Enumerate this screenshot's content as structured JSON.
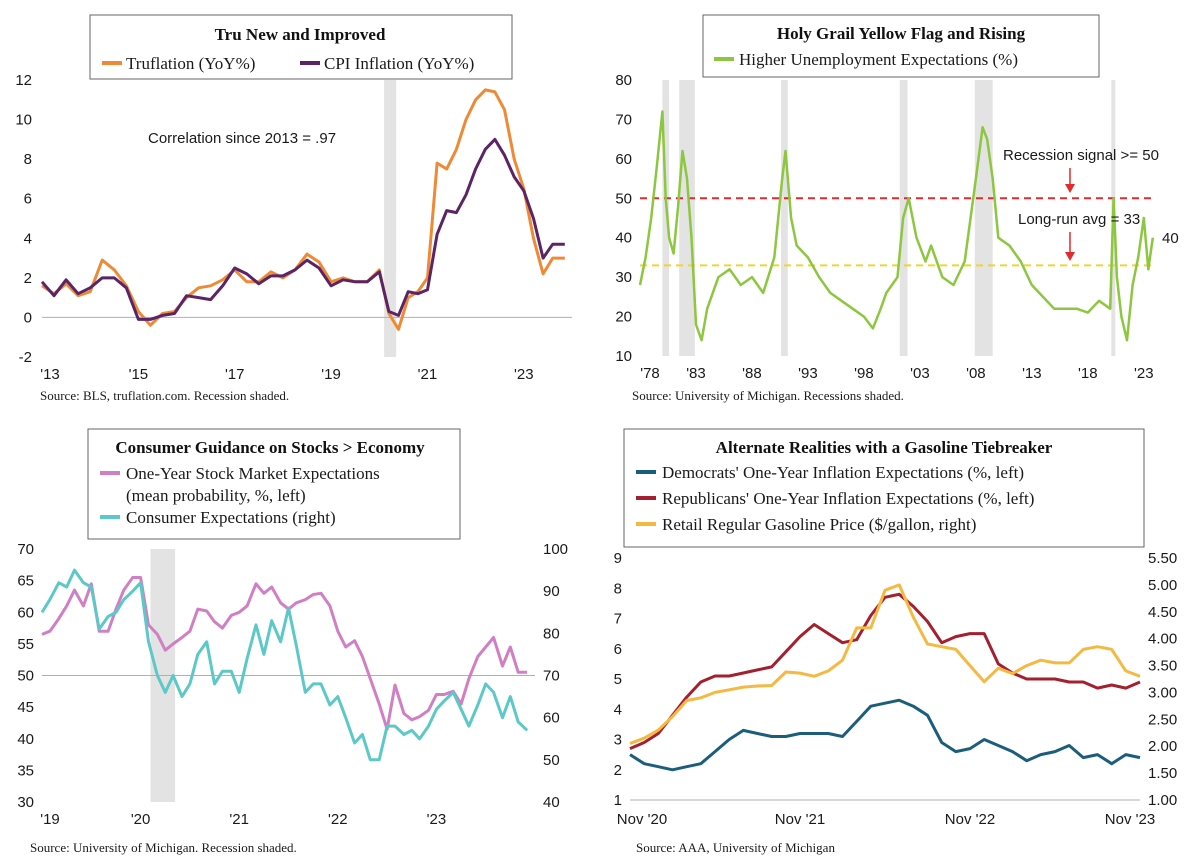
{
  "chart_data": [
    {
      "type": "line",
      "title": "Tru New and Improved",
      "source": "Source: BLS, truflation.com. Recession shaded.",
      "annotation": "Correlation since 2013 = .97",
      "x_ticks": [
        "'13",
        "'15",
        "'17",
        "'19",
        "'21",
        "'23"
      ],
      "xlim": [
        2013,
        2024
      ],
      "ylim": [
        -2,
        12
      ],
      "y_ticks": [
        "-2",
        "0",
        "2",
        "4",
        "6",
        "8",
        "10",
        "12"
      ],
      "recessions": [
        [
          2020.1,
          2020.35
        ]
      ],
      "series": [
        {
          "name": "Truflation (YoY%)",
          "color": "#ee8a35",
          "x": [
            2013.0,
            2013.25,
            2013.5,
            2013.75,
            2014.0,
            2014.25,
            2014.5,
            2014.75,
            2015.0,
            2015.25,
            2015.5,
            2015.75,
            2016.0,
            2016.25,
            2016.5,
            2016.75,
            2017.0,
            2017.25,
            2017.5,
            2017.75,
            2018.0,
            2018.25,
            2018.5,
            2018.75,
            2019.0,
            2019.25,
            2019.5,
            2019.75,
            2020.0,
            2020.2,
            2020.4,
            2020.6,
            2020.8,
            2021.0,
            2021.2,
            2021.4,
            2021.6,
            2021.8,
            2022.0,
            2022.2,
            2022.4,
            2022.6,
            2022.8,
            2023.0,
            2023.2,
            2023.4,
            2023.6,
            2023.85
          ],
          "y": [
            1.6,
            1.2,
            1.7,
            1.1,
            1.3,
            2.9,
            2.4,
            1.6,
            0.3,
            -0.4,
            0.2,
            0.3,
            1.0,
            1.5,
            1.6,
            1.9,
            2.4,
            1.8,
            1.8,
            2.3,
            2.0,
            2.4,
            3.2,
            2.8,
            1.8,
            2.0,
            1.8,
            1.8,
            2.4,
            0.2,
            -0.6,
            1.0,
            1.3,
            2.0,
            7.8,
            7.5,
            8.5,
            10.0,
            11.0,
            11.5,
            11.4,
            10.5,
            8.0,
            6.5,
            4.0,
            2.2,
            3.0,
            3.0
          ]
        },
        {
          "name": "CPI Inflation (YoY%)",
          "color": "#5b2466",
          "x": [
            2013.0,
            2013.25,
            2013.5,
            2013.75,
            2014.0,
            2014.25,
            2014.5,
            2014.75,
            2015.0,
            2015.25,
            2015.5,
            2015.75,
            2016.0,
            2016.25,
            2016.5,
            2016.75,
            2017.0,
            2017.25,
            2017.5,
            2017.75,
            2018.0,
            2018.25,
            2018.5,
            2018.75,
            2019.0,
            2019.25,
            2019.5,
            2019.75,
            2020.0,
            2020.2,
            2020.4,
            2020.6,
            2020.8,
            2021.0,
            2021.2,
            2021.4,
            2021.6,
            2021.8,
            2022.0,
            2022.2,
            2022.4,
            2022.6,
            2022.8,
            2023.0,
            2023.2,
            2023.4,
            2023.6,
            2023.85
          ],
          "y": [
            1.8,
            1.1,
            1.9,
            1.2,
            1.5,
            2.0,
            2.0,
            1.5,
            -0.1,
            -0.1,
            0.1,
            0.2,
            1.1,
            1.0,
            0.9,
            1.6,
            2.5,
            2.2,
            1.7,
            2.1,
            2.1,
            2.4,
            2.9,
            2.5,
            1.6,
            1.9,
            1.8,
            1.8,
            2.3,
            0.3,
            0.1,
            1.3,
            1.2,
            1.4,
            4.2,
            5.4,
            5.3,
            6.2,
            7.5,
            8.5,
            9.0,
            8.2,
            7.1,
            6.4,
            5.0,
            3.0,
            3.7,
            3.7
          ]
        }
      ]
    },
    {
      "type": "line",
      "title": "Holy Grail Yellow Flag and Rising",
      "source": "Source: University of Michigan. Recessions shaded.",
      "x_ticks": [
        "'78",
        "'83",
        "'88",
        "'93",
        "'98",
        "'03",
        "'08",
        "'13",
        "'18",
        "'23"
      ],
      "xlim": [
        1978,
        2024
      ],
      "ylim": [
        10,
        80
      ],
      "y_ticks": [
        "10",
        "20",
        "30",
        "40",
        "50",
        "60",
        "70",
        "80"
      ],
      "recessions": [
        [
          1980.0,
          1980.6
        ],
        [
          1981.5,
          1982.9
        ],
        [
          1990.6,
          1991.2
        ],
        [
          2001.2,
          2001.9
        ],
        [
          2007.9,
          2009.5
        ],
        [
          2020.1,
          2020.4
        ]
      ],
      "reference_lines": [
        {
          "label": "Recession signal >= 50",
          "value": 50,
          "color": "#e32b2b"
        },
        {
          "label": "Long-run avg = 33",
          "value": 33,
          "color": "#f0d23a"
        }
      ],
      "end_label": "40",
      "series": [
        {
          "name": "Higher Unemployment Expectations (%)",
          "color": "#8dc63f",
          "x": [
            1978.0,
            1978.5,
            1979.0,
            1979.5,
            1980.0,
            1980.3,
            1980.6,
            1981.0,
            1981.4,
            1981.8,
            1982.2,
            1982.6,
            1983.0,
            1983.5,
            1984.0,
            1985.0,
            1986.0,
            1987.0,
            1988.0,
            1989.0,
            1990.0,
            1990.7,
            1991.0,
            1991.5,
            1992.0,
            1993.0,
            1994.0,
            1995.0,
            1996.0,
            1997.0,
            1998.0,
            1998.8,
            1999.5,
            2000.0,
            2001.0,
            2001.5,
            2002.0,
            2002.7,
            2003.5,
            2004.0,
            2005.0,
            2006.0,
            2007.0,
            2008.0,
            2008.6,
            2009.0,
            2009.5,
            2010.0,
            2011.0,
            2012.0,
            2013.0,
            2014.0,
            2015.0,
            2016.0,
            2017.0,
            2018.0,
            2019.0,
            2020.0,
            2020.3,
            2020.6,
            2021.0,
            2021.5,
            2022.0,
            2022.5,
            2023.0,
            2023.4,
            2023.8
          ],
          "y": [
            28,
            35,
            45,
            58,
            72,
            50,
            40,
            36,
            48,
            62,
            55,
            40,
            18,
            14,
            22,
            30,
            32,
            28,
            30,
            26,
            35,
            55,
            62,
            45,
            38,
            35,
            30,
            26,
            24,
            22,
            20,
            17,
            22,
            26,
            30,
            45,
            50,
            40,
            34,
            38,
            30,
            28,
            34,
            55,
            68,
            65,
            55,
            40,
            38,
            34,
            28,
            25,
            22,
            22,
            22,
            21,
            24,
            22,
            50,
            30,
            20,
            14,
            28,
            35,
            45,
            32,
            40
          ]
        }
      ]
    },
    {
      "type": "line",
      "title": "Consumer Guidance on Stocks > Economy",
      "source": "Source: University of Michigan. Recession shaded.",
      "x_ticks": [
        "'19",
        "'20",
        "'21",
        "'22",
        "'23"
      ],
      "xlim": [
        2019,
        2024
      ],
      "ylim_left": [
        30,
        70
      ],
      "ylim_right": [
        40,
        100
      ],
      "y_ticks_left": [
        "30",
        "35",
        "40",
        "45",
        "50",
        "55",
        "60",
        "65",
        "70"
      ],
      "y_ticks_right": [
        "40",
        "50",
        "60",
        "70",
        "80",
        "90",
        "100"
      ],
      "recessions": [
        [
          2020.1,
          2020.35
        ]
      ],
      "series": [
        {
          "name": "One-Year Stock Market Expectations",
          "name_line2": "(mean probability, %, left)",
          "color": "#d17fc5",
          "axis": "left",
          "x": [
            2019.0,
            2019.08,
            2019.17,
            2019.25,
            2019.33,
            2019.42,
            2019.5,
            2019.58,
            2019.67,
            2019.75,
            2019.83,
            2019.92,
            2020.0,
            2020.08,
            2020.17,
            2020.25,
            2020.33,
            2020.42,
            2020.5,
            2020.58,
            2020.67,
            2020.75,
            2020.83,
            2020.92,
            2021.0,
            2021.08,
            2021.17,
            2021.25,
            2021.33,
            2021.42,
            2021.5,
            2021.58,
            2021.67,
            2021.75,
            2021.83,
            2021.92,
            2022.0,
            2022.08,
            2022.17,
            2022.25,
            2022.33,
            2022.42,
            2022.5,
            2022.58,
            2022.67,
            2022.75,
            2022.83,
            2022.92,
            2023.0,
            2023.08,
            2023.17,
            2023.25,
            2023.33,
            2023.42,
            2023.5,
            2023.58,
            2023.67,
            2023.75,
            2023.83,
            2023.92
          ],
          "y": [
            56.5,
            57.0,
            59.0,
            61.0,
            63.5,
            61.0,
            64.5,
            57.0,
            57.0,
            60.5,
            63.5,
            65.5,
            65.5,
            58.0,
            56.5,
            54.0,
            55.0,
            56.0,
            57.0,
            60.5,
            60.2,
            58.5,
            57.5,
            59.5,
            60.0,
            61.0,
            64.5,
            63.0,
            64.0,
            61.5,
            60.5,
            61.5,
            62.0,
            62.8,
            63.0,
            61.0,
            57.0,
            54.5,
            55.5,
            53.0,
            49.5,
            45.5,
            41.5,
            48.5,
            44.0,
            43.0,
            43.5,
            44.5,
            47.0,
            47.0,
            47.5,
            45.5,
            49.5,
            53.0,
            54.5,
            56.0,
            51.5,
            54.5,
            50.5,
            50.5
          ]
        },
        {
          "name": "Consumer Expectations (right)",
          "color": "#5cc8c8",
          "axis": "right",
          "x": [
            2019.0,
            2019.08,
            2019.17,
            2019.25,
            2019.33,
            2019.42,
            2019.5,
            2019.58,
            2019.67,
            2019.75,
            2019.83,
            2019.92,
            2020.0,
            2020.08,
            2020.17,
            2020.25,
            2020.33,
            2020.42,
            2020.5,
            2020.58,
            2020.67,
            2020.75,
            2020.83,
            2020.92,
            2021.0,
            2021.08,
            2021.17,
            2021.25,
            2021.33,
            2021.42,
            2021.5,
            2021.58,
            2021.67,
            2021.75,
            2021.83,
            2021.92,
            2022.0,
            2022.08,
            2022.17,
            2022.25,
            2022.33,
            2022.42,
            2022.5,
            2022.58,
            2022.67,
            2022.75,
            2022.83,
            2022.92,
            2023.0,
            2023.08,
            2023.17,
            2023.25,
            2023.33,
            2023.42,
            2023.5,
            2023.58,
            2023.67,
            2023.75,
            2023.83,
            2023.92
          ],
          "y": [
            85,
            88,
            92,
            91,
            95,
            92,
            91,
            81,
            84,
            85,
            88,
            90,
            92,
            78,
            70,
            66,
            70,
            65,
            68,
            75,
            78,
            68,
            71,
            71,
            66,
            74,
            82,
            75,
            83,
            78,
            86,
            77,
            66,
            68,
            68,
            63,
            65,
            60,
            54,
            56,
            50,
            50,
            58,
            58,
            56,
            57,
            55,
            58,
            62,
            64,
            66,
            62,
            58,
            63,
            68,
            66,
            60,
            65,
            59,
            57
          ]
        }
      ]
    },
    {
      "type": "line",
      "title": "Alternate Realities with a Gasoline Tiebreaker",
      "source": "Source: AAA, University of Michigan",
      "x_ticks": [
        "Nov '20",
        "Nov '21",
        "Nov '22",
        "Nov '23"
      ],
      "xlim": [
        0,
        36
      ],
      "ylim_left": [
        1,
        9
      ],
      "ylim_right": [
        1.0,
        5.5
      ],
      "y_ticks_left": [
        "1",
        "2",
        "3",
        "4",
        "5",
        "6",
        "7",
        "8",
        "9"
      ],
      "y_ticks_right": [
        "1.00",
        "1.50",
        "2.00",
        "2.50",
        "3.00",
        "3.50",
        "4.00",
        "4.50",
        "5.00",
        "5.50"
      ],
      "series": [
        {
          "name": "Democrats' One-Year Inflation Expectations (%, left)",
          "color": "#1b5e7b",
          "axis": "left",
          "x": [
            0,
            1,
            2,
            3,
            4,
            5,
            6,
            7,
            8,
            9,
            10,
            11,
            12,
            13,
            14,
            15,
            16,
            17,
            18,
            19,
            20,
            21,
            22,
            23,
            24,
            25,
            26,
            27,
            28,
            29,
            30,
            31,
            32,
            33,
            34,
            35,
            36
          ],
          "y": [
            2.5,
            2.2,
            2.1,
            2.0,
            2.1,
            2.2,
            2.6,
            3.0,
            3.3,
            3.2,
            3.1,
            3.1,
            3.2,
            3.2,
            3.2,
            3.1,
            3.6,
            4.1,
            4.2,
            4.3,
            4.1,
            3.8,
            2.9,
            2.6,
            2.7,
            3.0,
            2.8,
            2.6,
            2.3,
            2.5,
            2.6,
            2.8,
            2.4,
            2.5,
            2.2,
            2.5,
            2.4
          ]
        },
        {
          "name": "Republicans' One-Year Inflation Expectations (%, left)",
          "color": "#a3202f",
          "axis": "left",
          "x": [
            0,
            1,
            2,
            3,
            4,
            5,
            6,
            7,
            8,
            9,
            10,
            11,
            12,
            13,
            14,
            15,
            16,
            17,
            18,
            19,
            20,
            21,
            22,
            23,
            24,
            25,
            26,
            27,
            28,
            29,
            30,
            31,
            32,
            33,
            34,
            35,
            36
          ],
          "y": [
            2.7,
            2.9,
            3.2,
            3.8,
            4.4,
            4.9,
            5.1,
            5.1,
            5.2,
            5.3,
            5.4,
            5.9,
            6.4,
            6.8,
            6.5,
            6.2,
            6.3,
            7.1,
            7.7,
            7.8,
            7.4,
            6.9,
            6.2,
            6.4,
            6.5,
            6.5,
            5.5,
            5.2,
            5.0,
            5.0,
            5.0,
            4.9,
            4.9,
            4.7,
            4.8,
            4.7,
            4.9
          ]
        },
        {
          "name": "Retail Regular Gasoline Price ($/gallon, right)",
          "color": "#f5b942",
          "axis": "right",
          "x": [
            0,
            1,
            2,
            3,
            4,
            5,
            6,
            7,
            8,
            9,
            10,
            11,
            12,
            13,
            14,
            15,
            16,
            17,
            18,
            19,
            20,
            21,
            22,
            23,
            24,
            25,
            26,
            27,
            28,
            29,
            30,
            31,
            32,
            33,
            34,
            35,
            36
          ],
          "y": [
            2.05,
            2.15,
            2.3,
            2.55,
            2.85,
            2.9,
            3.0,
            3.05,
            3.1,
            3.12,
            3.13,
            3.38,
            3.36,
            3.3,
            3.4,
            3.6,
            4.2,
            4.2,
            4.9,
            5.0,
            4.4,
            3.9,
            3.85,
            3.8,
            3.5,
            3.2,
            3.45,
            3.35,
            3.5,
            3.6,
            3.55,
            3.55,
            3.8,
            3.85,
            3.8,
            3.4,
            3.3
          ]
        }
      ]
    }
  ]
}
